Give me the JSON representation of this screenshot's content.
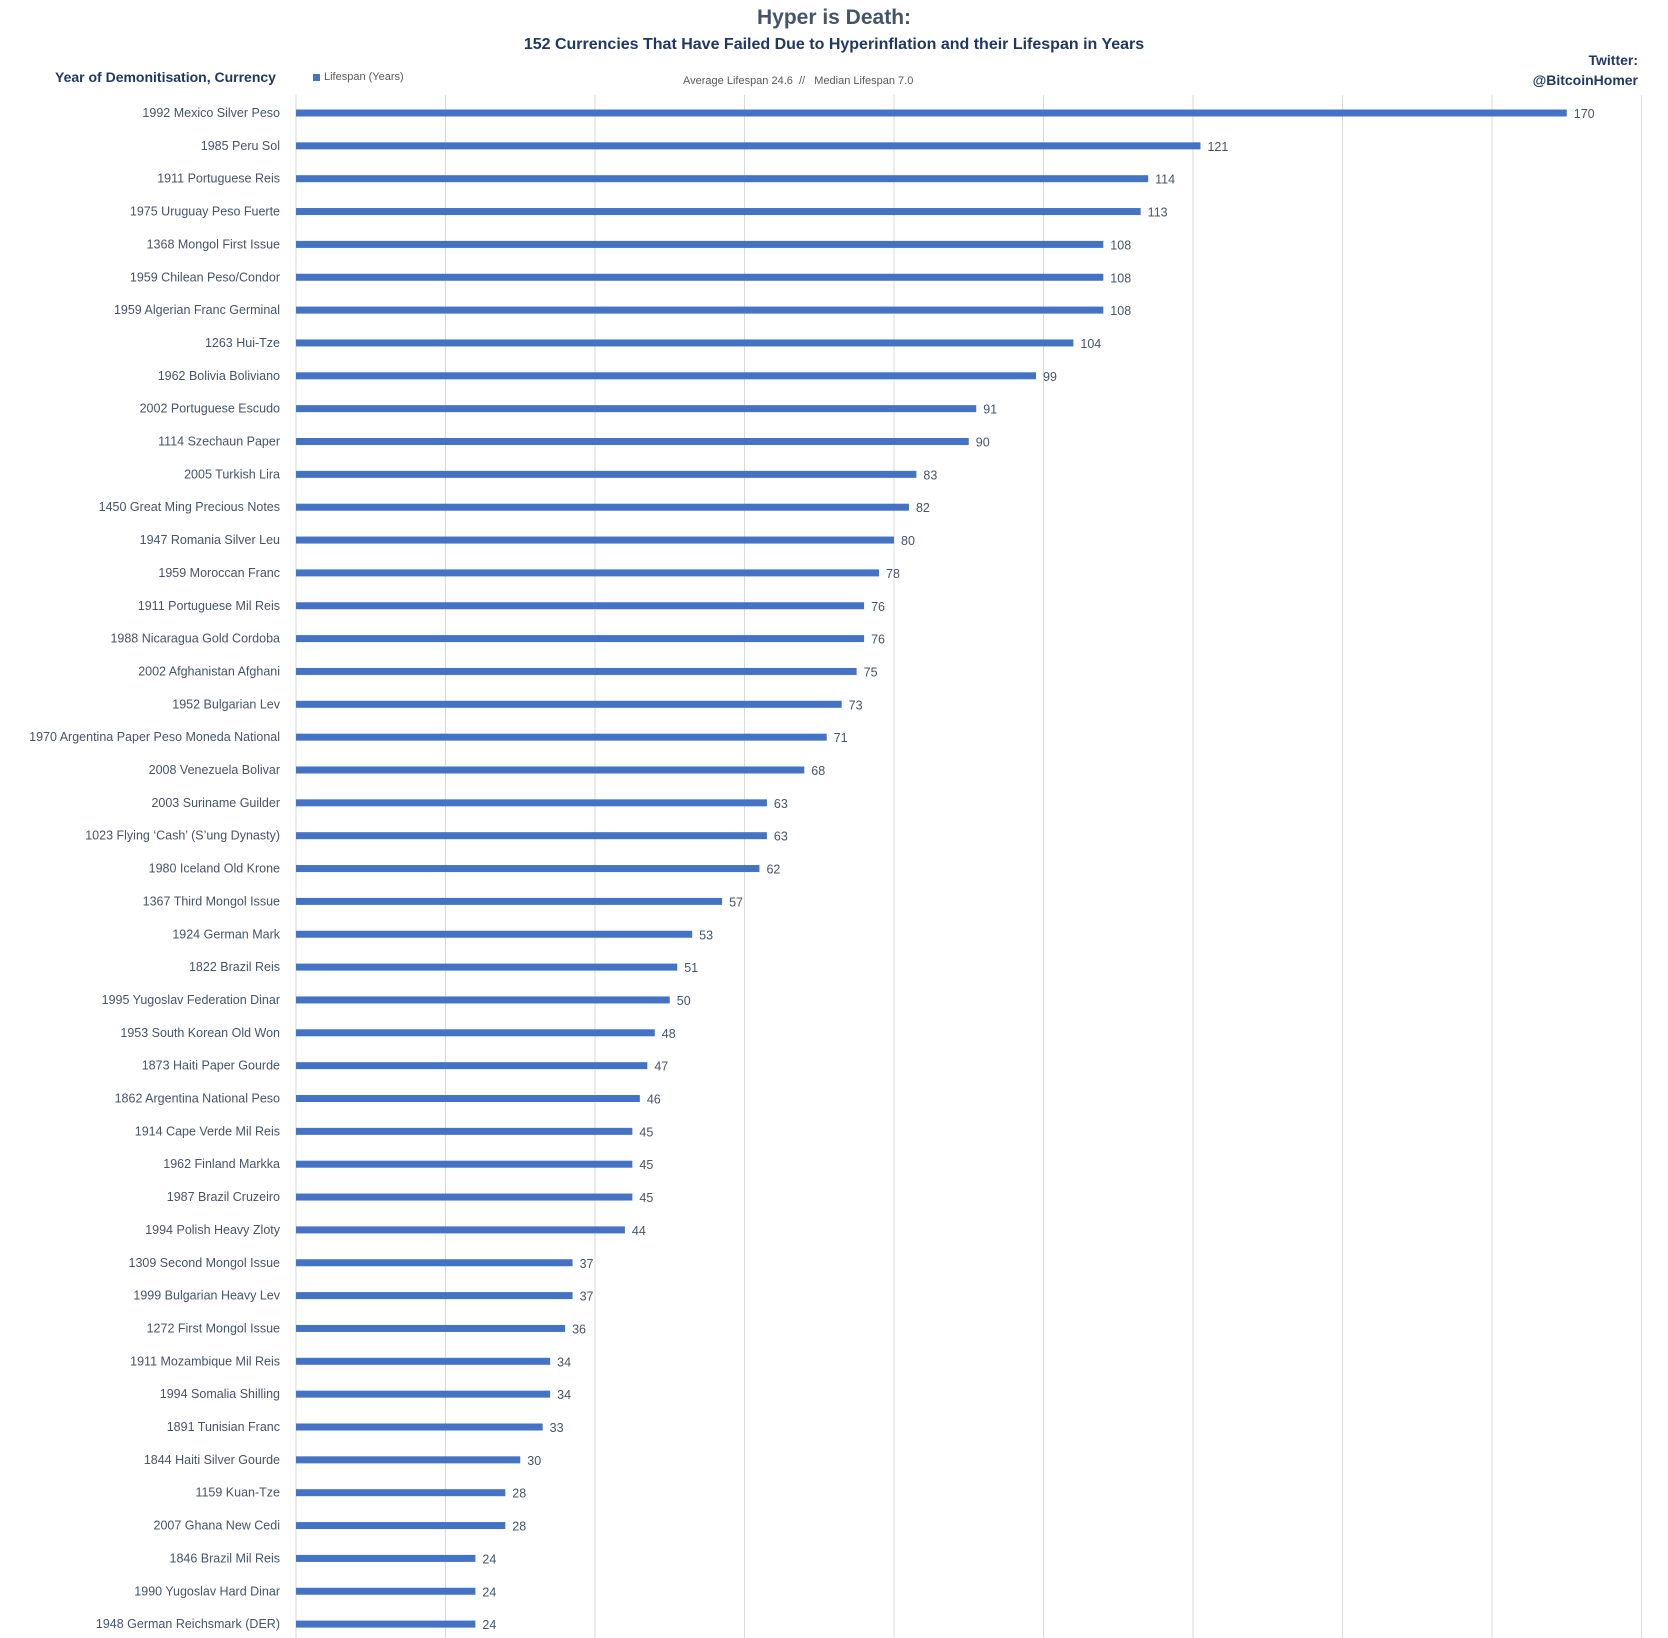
{
  "chart_data": {
    "type": "bar",
    "orientation": "horizontal",
    "title": "Hyper is Death:",
    "subtitle": "152 Currencies That Have Failed Due to Hyperinflation and their Lifespan in Years",
    "ylabel": "Year of Demonitisation, Currency",
    "legend": "Lifespan (Years)",
    "stats": "Average Lifespan 24.6  //   Median Lifespan 7.0",
    "credit_line1": "Twitter:",
    "credit_line2": "@BitcoinHomer",
    "xlim": [
      0,
      180
    ],
    "grid": true,
    "bar_color": "#4472c4",
    "categories": [
      "1992 Mexico Silver Peso",
      "1985 Peru Sol",
      "1911 Portuguese Reis",
      "1975 Uruguay Peso Fuerte",
      "1368 Mongol First Issue",
      "1959 Chilean Peso/Condor",
      "1959 Algerian Franc Germinal",
      "1263 Hui-Tze",
      "1962 Bolivia Boliviano",
      "2002 Portuguese Escudo",
      "1114 Szechaun Paper",
      "2005 Turkish Lira",
      "1450 Great Ming Precious Notes",
      "1947 Romania Silver Leu",
      "1959 Moroccan Franc",
      "1911 Portuguese Mil Reis",
      "1988 Nicaragua Gold Cordoba",
      "2002 Afghanistan Afghani",
      "1952 Bulgarian Lev",
      "1970 Argentina Paper Peso Moneda National",
      "2008 Venezuela Bolivar",
      "2003 Suriname Guilder",
      "1023 Flying ‘Cash’ (S’ung Dynasty)",
      "1980 Iceland Old Krone",
      "1367 Third Mongol Issue",
      "1924 German Mark",
      "1822 Brazil Reis",
      "1995 Yugoslav Federation Dinar",
      "1953 South Korean Old Won",
      "1873 Haiti Paper Gourde",
      "1862 Argentina National Peso",
      "1914 Cape Verde Mil Reis",
      "1962 Finland Markka",
      "1987 Brazil Cruzeiro",
      "1994 Polish Heavy Zloty",
      "1309 Second Mongol Issue",
      "1999 Bulgarian Heavy Lev",
      "1272 First Mongol Issue",
      "1911 Mozambique Mil Reis",
      "1994 Somalia Shilling",
      "1891 Tunisian Franc",
      "1844 Haiti Silver Gourde",
      "1159 Kuan-Tze",
      "2007 Ghana New Cedi",
      "1846 Brazil Mil Reis",
      "1990 Yugoslav Hard Dinar",
      "1948 German Reichsmark (DER)"
    ],
    "values": [
      170,
      121,
      114,
      113,
      108,
      108,
      108,
      104,
      99,
      91,
      90,
      83,
      82,
      80,
      78,
      76,
      76,
      75,
      73,
      71,
      68,
      63,
      63,
      62,
      57,
      53,
      51,
      50,
      48,
      47,
      46,
      45,
      45,
      45,
      44,
      37,
      37,
      36,
      34,
      34,
      33,
      30,
      28,
      28,
      24,
      24,
      24
    ]
  }
}
